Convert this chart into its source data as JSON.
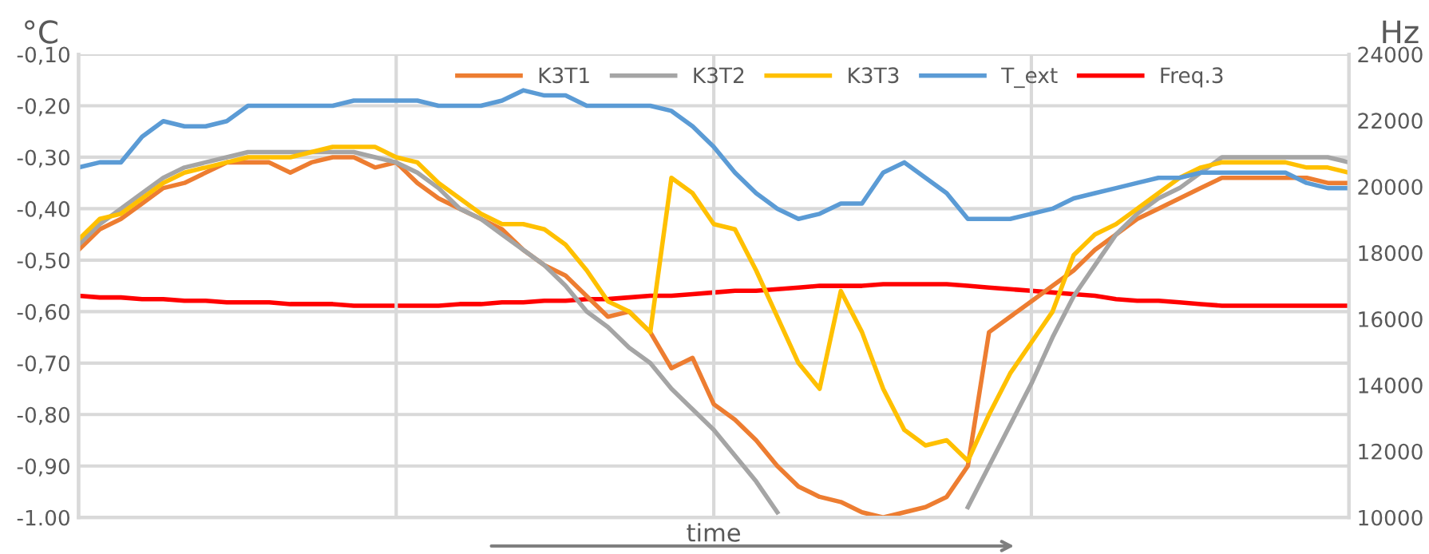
{
  "chart_data": {
    "type": "line",
    "xlabel": "time",
    "ylabel": "°C",
    "y2label": "Hz",
    "categories": [
      null,
      null,
      null,
      null,
      null,
      null,
      null,
      null,
      null,
      null,
      null,
      null,
      null,
      null,
      null,
      null,
      null,
      null,
      null,
      null,
      null,
      null,
      null,
      null,
      null,
      null,
      null,
      null,
      null,
      null,
      null,
      null,
      null,
      null,
      null,
      null,
      null,
      null,
      null,
      null,
      null,
      null,
      null,
      null,
      null,
      null,
      null,
      null,
      null,
      null,
      null,
      null,
      null,
      null,
      null,
      null,
      null,
      null,
      null,
      null,
      null
    ],
    "ylim": [
      -1.0,
      -0.1
    ],
    "yticks": [
      {
        "value": -1.0,
        "label": "-1.00"
      },
      {
        "value": -0.9,
        "label": "-0,90"
      },
      {
        "value": -0.8,
        "label": "-0,80"
      },
      {
        "value": -0.7,
        "label": "-0,70"
      },
      {
        "value": -0.6,
        "label": "-0,60"
      },
      {
        "value": -0.5,
        "label": "-0,50"
      },
      {
        "value": -0.4,
        "label": "-0,40"
      },
      {
        "value": -0.3,
        "label": "-0,30"
      },
      {
        "value": -0.2,
        "label": "-0,20"
      },
      {
        "value": -0.1,
        "label": "-0,10"
      }
    ],
    "y2lim": [
      10000,
      24000
    ],
    "y2ticks": [
      10000,
      12000,
      14000,
      16000,
      18000,
      20000,
      22000,
      24000
    ],
    "grid": true,
    "legend": "top",
    "marker": "none",
    "line_style": "solid",
    "series": [
      {
        "name": "K3T1",
        "color": "#ed7d31",
        "values": [
          -0.48,
          -0.44,
          -0.42,
          -0.39,
          -0.36,
          -0.35,
          -0.33,
          -0.31,
          -0.31,
          -0.31,
          -0.33,
          -0.31,
          -0.3,
          -0.3,
          -0.32,
          -0.31,
          -0.35,
          -0.38,
          -0.4,
          -0.42,
          -0.44,
          -0.48,
          -0.51,
          -0.53,
          -0.57,
          -0.61,
          -0.6,
          -0.64,
          -0.71,
          -0.69,
          -0.78,
          -0.81,
          -0.85,
          -0.9,
          -0.94,
          -0.96,
          -0.97,
          -0.99,
          -1.0,
          -0.99,
          -0.98,
          -0.96,
          -0.9,
          -0.64,
          -0.61,
          -0.58,
          -0.55,
          -0.52,
          -0.48,
          -0.45,
          -0.42,
          -0.4,
          -0.38,
          -0.36,
          -0.34,
          -0.34,
          -0.34,
          -0.34,
          -0.34,
          -0.35,
          -0.35
        ]
      },
      {
        "name": "K3T2",
        "color": "#a5a5a5",
        "values": [
          -0.47,
          -0.43,
          -0.4,
          -0.37,
          -0.34,
          -0.32,
          -0.31,
          -0.3,
          -0.29,
          -0.29,
          -0.29,
          -0.29,
          -0.29,
          -0.29,
          -0.3,
          -0.31,
          -0.33,
          -0.36,
          -0.4,
          -0.42,
          -0.45,
          -0.48,
          -0.51,
          -0.55,
          -0.6,
          -0.63,
          -0.67,
          -0.7,
          -0.75,
          -0.79,
          -0.83,
          -0.88,
          -0.93,
          -0.99,
          null,
          null,
          null,
          null,
          null,
          null,
          null,
          null,
          -0.98,
          -0.9,
          -0.82,
          -0.74,
          -0.65,
          -0.57,
          -0.51,
          -0.45,
          -0.41,
          -0.38,
          -0.36,
          -0.33,
          -0.3,
          -0.3,
          -0.3,
          -0.3,
          -0.3,
          -0.3,
          -0.31
        ]
      },
      {
        "name": "K3T3",
        "color": "#ffc000",
        "values": [
          -0.46,
          -0.42,
          -0.41,
          -0.38,
          -0.35,
          -0.33,
          -0.32,
          -0.31,
          -0.3,
          -0.3,
          -0.3,
          -0.29,
          -0.28,
          -0.28,
          -0.28,
          -0.3,
          -0.31,
          -0.35,
          -0.38,
          -0.41,
          -0.43,
          -0.43,
          -0.44,
          -0.47,
          -0.52,
          -0.58,
          -0.6,
          -0.64,
          -0.34,
          -0.37,
          -0.43,
          -0.44,
          -0.52,
          -0.61,
          -0.7,
          -0.75,
          -0.56,
          -0.64,
          -0.75,
          -0.83,
          -0.86,
          -0.85,
          -0.89,
          -0.8,
          -0.72,
          -0.66,
          -0.6,
          -0.49,
          -0.45,
          -0.43,
          -0.4,
          -0.37,
          -0.34,
          -0.32,
          -0.31,
          -0.31,
          -0.31,
          -0.31,
          -0.32,
          -0.32,
          -0.33
        ]
      },
      {
        "name": "T_ext",
        "color": "#5b9bd5",
        "values": [
          -0.32,
          -0.31,
          -0.31,
          -0.26,
          -0.23,
          -0.24,
          -0.24,
          -0.23,
          -0.2,
          -0.2,
          -0.2,
          -0.2,
          -0.2,
          -0.19,
          -0.19,
          -0.19,
          -0.19,
          -0.2,
          -0.2,
          -0.2,
          -0.19,
          -0.17,
          -0.18,
          -0.18,
          -0.2,
          -0.2,
          -0.2,
          -0.2,
          -0.21,
          -0.24,
          -0.28,
          -0.33,
          -0.37,
          -0.4,
          -0.42,
          -0.41,
          -0.39,
          -0.39,
          -0.33,
          -0.31,
          -0.34,
          -0.37,
          -0.42,
          -0.42,
          -0.42,
          -0.41,
          -0.4,
          -0.38,
          -0.37,
          -0.36,
          -0.35,
          -0.34,
          -0.34,
          -0.33,
          -0.33,
          -0.33,
          -0.33,
          -0.33,
          -0.35,
          -0.36,
          -0.36
        ]
      },
      {
        "name": "Freq.3",
        "color": "#ff0000",
        "axis": "y2",
        "values": [
          16700,
          16650,
          16650,
          16600,
          16600,
          16550,
          16550,
          16500,
          16500,
          16500,
          16450,
          16450,
          16450,
          16400,
          16400,
          16400,
          16400,
          16400,
          16450,
          16450,
          16500,
          16500,
          16550,
          16550,
          16600,
          16600,
          16650,
          16700,
          16700,
          16750,
          16800,
          16850,
          16850,
          16900,
          16950,
          17000,
          17000,
          17000,
          17050,
          17050,
          17050,
          17050,
          17000,
          16950,
          16900,
          16850,
          16800,
          16750,
          16700,
          16600,
          16550,
          16550,
          16500,
          16450,
          16400,
          16400,
          16400,
          16400,
          16400,
          16400,
          16400
        ]
      }
    ]
  }
}
